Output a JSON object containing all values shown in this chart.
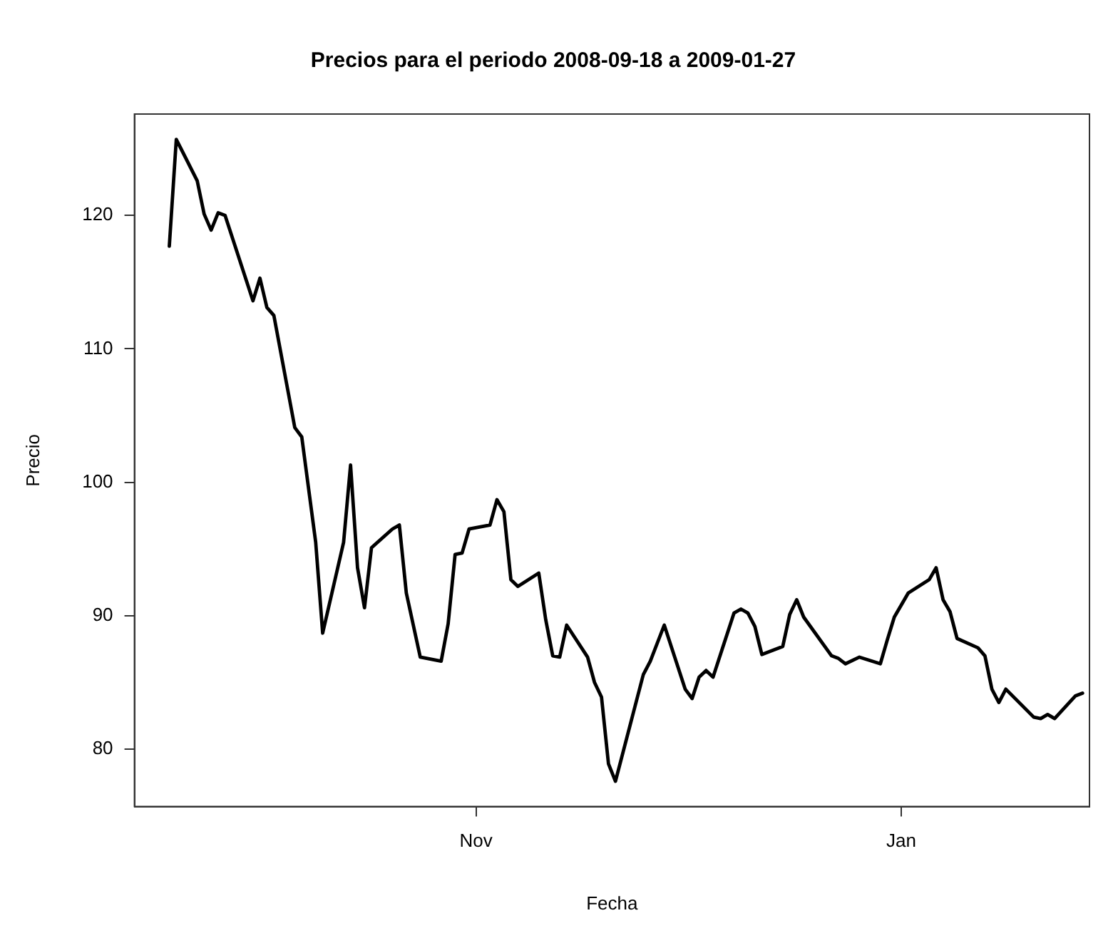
{
  "chart_data": {
    "type": "line",
    "title": "Precios para el periodo 2008-09-18 a 2009-01-27",
    "xlabel": "Fecha",
    "ylabel": "Precio",
    "x": [
      "2008-09-18",
      "2008-09-19",
      "2008-09-22",
      "2008-09-23",
      "2008-09-24",
      "2008-09-25",
      "2008-09-26",
      "2008-09-30",
      "2008-10-01",
      "2008-10-02",
      "2008-10-03",
      "2008-10-06",
      "2008-10-07",
      "2008-10-09",
      "2008-10-10",
      "2008-10-13",
      "2008-10-14",
      "2008-10-15",
      "2008-10-16",
      "2008-10-17",
      "2008-10-20",
      "2008-10-21",
      "2008-10-22",
      "2008-10-24",
      "2008-10-27",
      "2008-10-28",
      "2008-10-29",
      "2008-10-30",
      "2008-10-31",
      "2008-11-03",
      "2008-11-04",
      "2008-11-05",
      "2008-11-06",
      "2008-11-07",
      "2008-11-10",
      "2008-11-11",
      "2008-11-12",
      "2008-11-13",
      "2008-11-14",
      "2008-11-17",
      "2008-11-18",
      "2008-11-19",
      "2008-11-20",
      "2008-11-21",
      "2008-11-25",
      "2008-11-26",
      "2008-11-28",
      "2008-12-01",
      "2008-12-02",
      "2008-12-03",
      "2008-12-04",
      "2008-12-05",
      "2008-12-08",
      "2008-12-09",
      "2008-12-10",
      "2008-12-11",
      "2008-12-12",
      "2008-12-15",
      "2008-12-16",
      "2008-12-17",
      "2008-12-18",
      "2008-12-22",
      "2008-12-23",
      "2008-12-24",
      "2008-12-26",
      "2008-12-29",
      "2008-12-30",
      "2008-12-31",
      "2009-01-02",
      "2009-01-05",
      "2009-01-06",
      "2009-01-07",
      "2009-01-08",
      "2009-01-09",
      "2009-01-12",
      "2009-01-13",
      "2009-01-14",
      "2009-01-15",
      "2009-01-16",
      "2009-01-20",
      "2009-01-21",
      "2009-01-22",
      "2009-01-23",
      "2009-01-26",
      "2009-01-27"
    ],
    "series": [
      {
        "color": "#000000",
        "values": [
          117.7,
          125.7,
          122.6,
          120.1,
          118.9,
          120.2,
          120.0,
          113.6,
          115.3,
          113.1,
          112.5,
          104.1,
          103.4,
          95.5,
          88.7,
          95.5,
          101.3,
          93.6,
          90.6,
          95.1,
          96.5,
          96.8,
          91.7,
          86.9,
          86.6,
          89.4,
          94.6,
          94.7,
          96.5,
          96.8,
          98.7,
          97.8,
          92.7,
          92.2,
          93.2,
          89.7,
          87.0,
          86.9,
          89.3,
          86.9,
          85.0,
          83.9,
          78.9,
          77.6,
          85.6,
          86.6,
          89.3,
          84.5,
          83.8,
          85.4,
          85.9,
          85.4,
          90.2,
          90.5,
          90.2,
          89.2,
          87.1,
          87.7,
          90.1,
          91.2,
          89.9,
          87.0,
          86.8,
          86.4,
          86.9,
          86.4,
          88.2,
          89.9,
          91.7,
          92.7,
          93.6,
          91.2,
          90.3,
          88.3,
          87.6,
          87.0,
          84.5,
          83.5,
          84.5,
          82.4,
          82.3,
          82.6,
          82.3,
          84.0,
          84.2
        ]
      }
    ],
    "xlim": [
      "2008-09-13",
      "2009-01-28"
    ],
    "xticks": [
      {
        "value": "2008-11-01",
        "label": "Nov"
      },
      {
        "value": "2009-01-01",
        "label": "Jan"
      }
    ],
    "ylim": [
      75.7,
      127.6
    ],
    "yticks": [
      80,
      90,
      100,
      110,
      120
    ],
    "grid": false,
    "legend": false,
    "marker": "none",
    "line_style": "solid"
  }
}
